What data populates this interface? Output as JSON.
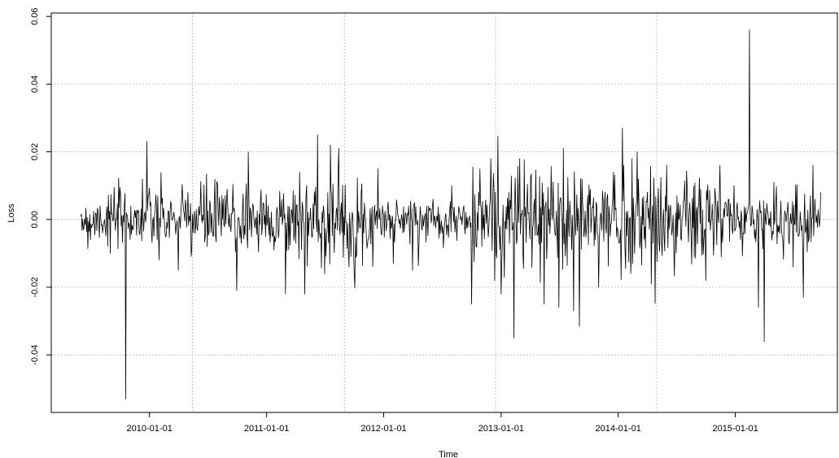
{
  "chart_data": {
    "type": "line",
    "xlabel": "Time",
    "ylabel": "Loss",
    "xlim": [
      "2009-03-01",
      "2015-11-15"
    ],
    "ylim": [
      -0.057,
      0.061
    ],
    "grid": true,
    "x_ticks": [
      "2010-01-01",
      "2011-01-01",
      "2012-01-01",
      "2013-01-01",
      "2014-01-01",
      "2015-01-01"
    ],
    "y_ticks": [
      -0.04,
      -0.02,
      0.0,
      0.02,
      0.04,
      0.06
    ],
    "y_tick_labels": [
      "-0.04",
      "-0.02",
      "0.00",
      "0.02",
      "0.04",
      "0.06"
    ],
    "grid_x": [
      "2010-05-15",
      "2011-09-01",
      "2012-12-15",
      "2014-05-01"
    ],
    "grid_y": [
      -0.04,
      -0.02,
      0.0,
      0.02,
      0.04
    ],
    "series_color": "#000000",
    "series": [
      {
        "x_start": "2009-06-01",
        "x_end": "2015-09-25",
        "points": [
          [
            "2009-06-01",
            0.001
          ],
          [
            "2009-07-01",
            -0.006
          ],
          [
            "2009-08-01",
            0.004
          ],
          [
            "2009-09-01",
            -0.01
          ],
          [
            "2009-10-20",
            -0.053
          ],
          [
            "2009-11-05",
            0.004
          ],
          [
            "2009-12-10",
            0.012
          ],
          [
            "2009-12-25",
            0.023
          ],
          [
            "2010-02-01",
            -0.012
          ],
          [
            "2010-04-01",
            -0.015
          ],
          [
            "2010-05-01",
            0.008
          ],
          [
            "2010-07-01",
            -0.008
          ],
          [
            "2010-09-01",
            0.009
          ],
          [
            "2010-10-01",
            -0.021
          ],
          [
            "2010-11-05",
            0.02
          ],
          [
            "2011-01-15",
            -0.004
          ],
          [
            "2011-03-01",
            -0.022
          ],
          [
            "2011-04-15",
            0.014
          ],
          [
            "2011-05-01",
            -0.022
          ],
          [
            "2011-06-10",
            0.025
          ],
          [
            "2011-07-01",
            -0.016
          ],
          [
            "2011-07-20",
            0.022
          ],
          [
            "2011-08-15",
            0.021
          ],
          [
            "2011-09-15",
            -0.014
          ],
          [
            "2011-11-01",
            -0.004
          ],
          [
            "2011-12-15",
            0.015
          ],
          [
            "2012-02-01",
            -0.013
          ],
          [
            "2012-04-01",
            -0.015
          ],
          [
            "2012-06-01",
            0.004
          ],
          [
            "2012-08-01",
            0.01
          ],
          [
            "2012-10-01",
            -0.025
          ],
          [
            "2012-12-01",
            0.018
          ],
          [
            "2013-01-01",
            -0.022
          ],
          [
            "2013-02-10",
            -0.035
          ],
          [
            "2013-03-01",
            0.018
          ],
          [
            "2013-05-15",
            -0.025
          ],
          [
            "2013-07-01",
            -0.026
          ],
          [
            "2013-07-15",
            0.021
          ],
          [
            "2013-08-15",
            -0.027
          ],
          [
            "2013-11-01",
            -0.02
          ],
          [
            "2014-01-15",
            0.027
          ],
          [
            "2014-03-01",
            0.02
          ],
          [
            "2014-04-15",
            -0.019
          ],
          [
            "2014-06-01",
            0.016
          ],
          [
            "2014-08-01",
            -0.002
          ],
          [
            "2014-10-01",
            -0.018
          ],
          [
            "2014-11-15",
            0.016
          ],
          [
            "2015-01-01",
            -0.003
          ],
          [
            "2015-02-15",
            0.056
          ],
          [
            "2015-03-15",
            -0.026
          ],
          [
            "2015-04-01",
            -0.036
          ],
          [
            "2015-05-01",
            0.011
          ],
          [
            "2015-07-01",
            -0.014
          ],
          [
            "2015-08-01",
            -0.023
          ],
          [
            "2015-09-01",
            0.016
          ],
          [
            "2015-09-25",
            0.008
          ]
        ]
      }
    ]
  }
}
